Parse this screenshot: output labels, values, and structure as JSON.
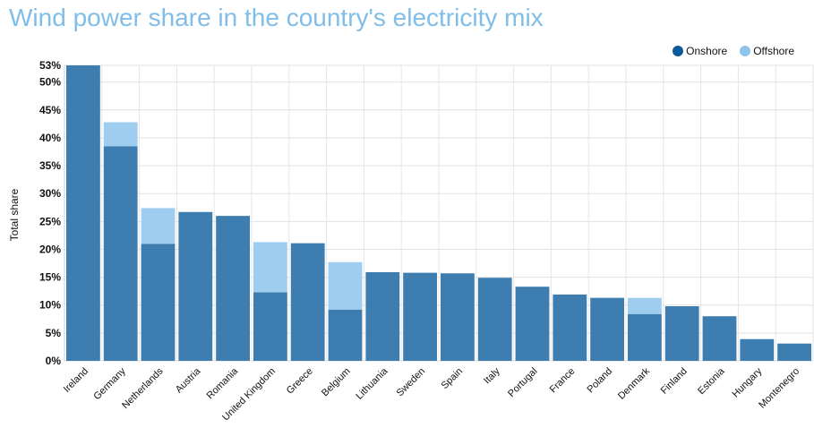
{
  "chart_data": {
    "type": "bar",
    "stacked": true,
    "title": "Wind power share in the country's electricity mix",
    "ylabel": "Total share",
    "xlabel": "",
    "ylim": [
      0,
      53
    ],
    "yticks": [
      "0%",
      "5%",
      "10%",
      "15%",
      "20%",
      "25%",
      "30%",
      "35%",
      "40%",
      "45%",
      "50%",
      "53%"
    ],
    "ytick_values": [
      0,
      5,
      10,
      15,
      20,
      25,
      30,
      35,
      40,
      45,
      50,
      53
    ],
    "grid": true,
    "legend_position": "top-right",
    "categories": [
      "Ireland",
      "Germany",
      "Netherlands",
      "Austria",
      "Romania",
      "United Kingdom",
      "Greece",
      "Belgium",
      "Lithuania",
      "Sweden",
      "Spain",
      "Italy",
      "Portugal",
      "France",
      "Poland",
      "Denmark",
      "Finland",
      "Estonia",
      "Hungary",
      "Montenegro"
    ],
    "series": [
      {
        "name": "Onshore",
        "color": "#3d7db0",
        "values": [
          53.0,
          38.5,
          21.0,
          26.7,
          26.0,
          12.3,
          21.1,
          9.2,
          15.9,
          15.8,
          15.7,
          14.9,
          13.3,
          11.9,
          11.3,
          8.4,
          9.8,
          8.0,
          3.9,
          3.1
        ]
      },
      {
        "name": "Offshore",
        "color": "#9ecdf0",
        "values": [
          0,
          4.3,
          6.4,
          0,
          0,
          9.0,
          0,
          8.5,
          0,
          0,
          0,
          0,
          0,
          0,
          0,
          2.9,
          0,
          0,
          0,
          0
        ]
      }
    ]
  },
  "legend": {
    "onshore": {
      "label": "Onshore",
      "color": "#0d5a9a"
    },
    "offshore": {
      "label": "Offshore",
      "color": "#8ec4ec"
    }
  }
}
